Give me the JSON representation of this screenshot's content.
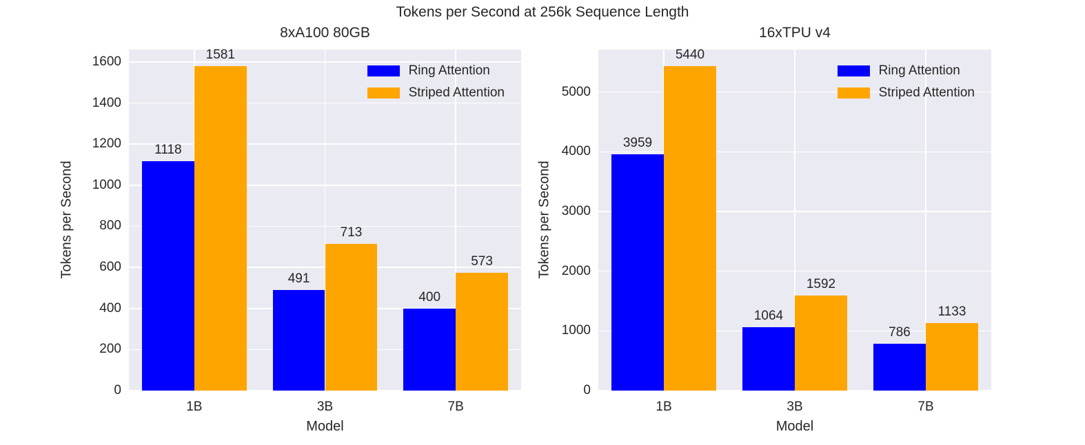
{
  "figure": {
    "title": "Tokens per Second at 256k Sequence Length"
  },
  "style": {
    "plot_background": "#eaeaf2",
    "grid_color": "#ffffff",
    "text_color": "#262626",
    "ring_color": "#0000ff",
    "striped_color": "#ffa500"
  },
  "chart_data": [
    {
      "type": "bar",
      "title": "8xA100 80GB",
      "xlabel": "Model",
      "ylabel": "Tokens per Second",
      "categories": [
        "1B",
        "3B",
        "7B"
      ],
      "series": [
        {
          "name": "Ring Attention",
          "color": "#0000ff",
          "values": [
            1118,
            491,
            400
          ]
        },
        {
          "name": "Striped Attention",
          "color": "#ffa500",
          "values": [
            1581,
            713,
            573
          ]
        }
      ],
      "yticks": [
        0,
        200,
        400,
        600,
        800,
        1000,
        1200,
        1400,
        1600
      ],
      "ylim": [
        0,
        1660
      ],
      "grid": true,
      "legend_position": "upper right"
    },
    {
      "type": "bar",
      "title": "16xTPU v4",
      "xlabel": "Model",
      "ylabel": "Tokens per Second",
      "categories": [
        "1B",
        "3B",
        "7B"
      ],
      "series": [
        {
          "name": "Ring Attention",
          "color": "#0000ff",
          "values": [
            3959,
            1064,
            786
          ]
        },
        {
          "name": "Striped Attention",
          "color": "#ffa500",
          "values": [
            5440,
            1592,
            1133
          ]
        }
      ],
      "yticks": [
        0,
        1000,
        2000,
        3000,
        4000,
        5000
      ],
      "ylim": [
        0,
        5712
      ],
      "grid": true,
      "legend_position": "upper right"
    }
  ]
}
